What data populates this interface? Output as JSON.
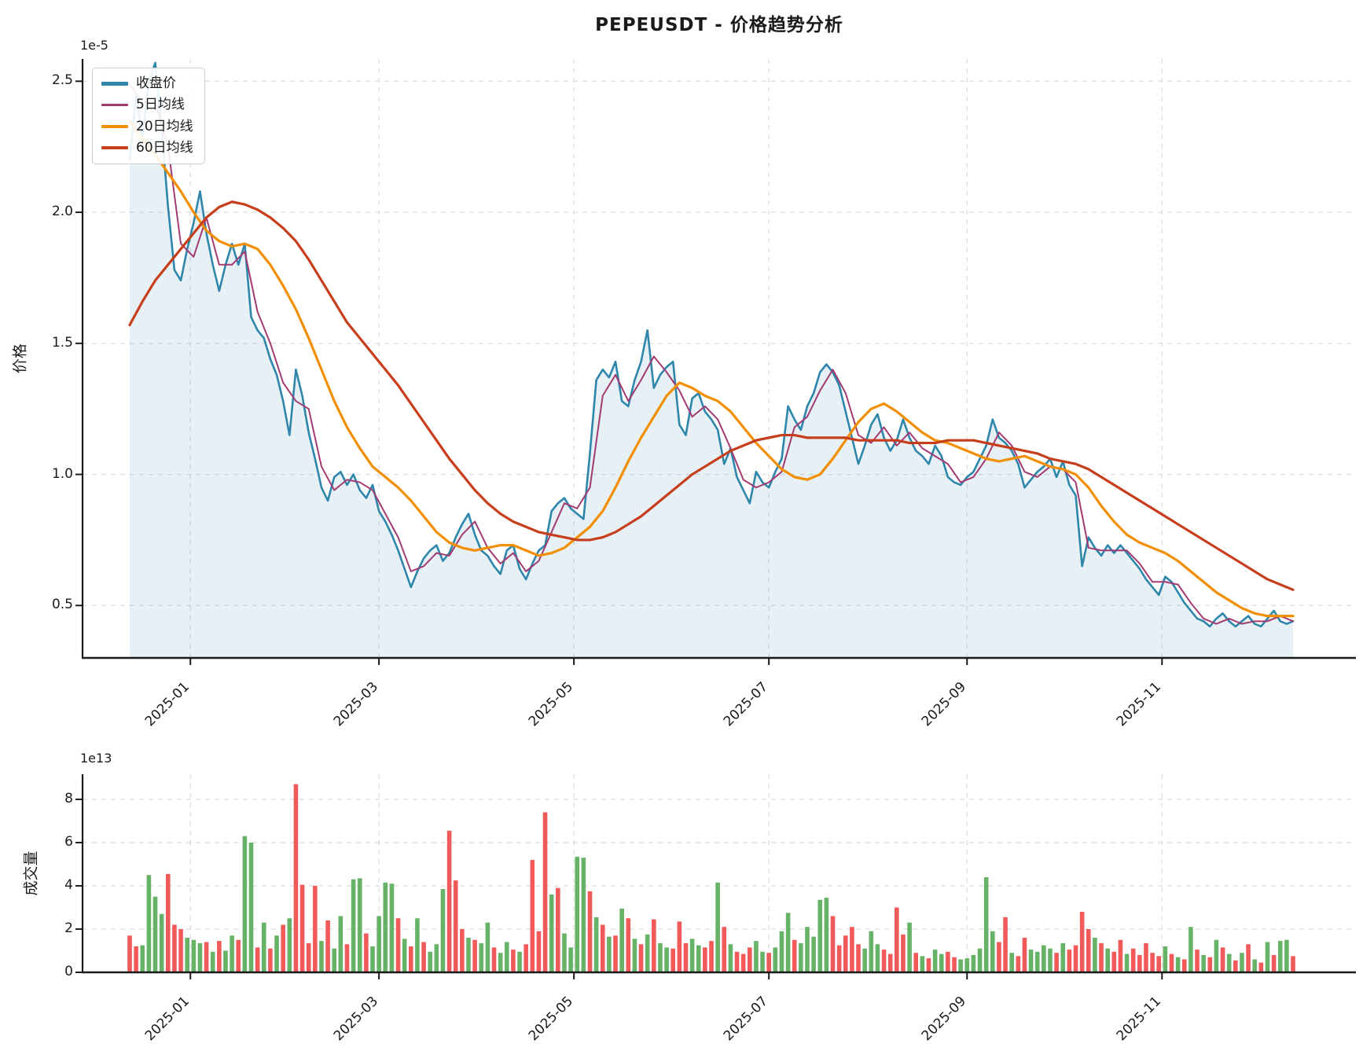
{
  "title": "PEPEUSDT - 价格趋势分析",
  "chart_data": [
    {
      "type": "line",
      "title": "PEPEUSDT - 价格趋势分析",
      "xlabel": "",
      "ylabel": "价格",
      "y_offset_label": "1e-5",
      "x_tick_labels": [
        "2025-01",
        "2025-03",
        "2025-05",
        "2025-07",
        "2025-09",
        "2025-11"
      ],
      "x_tick_days": [
        19,
        78,
        139,
        200,
        262,
        323
      ],
      "x_domain_days": [
        0,
        364
      ],
      "y_ticks": [
        0.5,
        1.0,
        1.5,
        2.0,
        2.5
      ],
      "y_tick_labels": [
        "0.5",
        "1.0",
        "1.5",
        "2.0",
        "2.5"
      ],
      "ylim": [
        0.3,
        2.585
      ],
      "grid": true,
      "legend_position": "upper left",
      "series": [
        {
          "name": "收盘价",
          "color": "#2E86AB",
          "line_width": 2.6,
          "fill_under": true,
          "fill_color": "rgba(46,134,171,0.12)",
          "day_step": 2,
          "values": [
            2.2,
            2.45,
            2.28,
            2.5,
            2.57,
            2.32,
            2.02,
            1.78,
            1.74,
            1.86,
            1.96,
            2.08,
            1.92,
            1.8,
            1.7,
            1.8,
            1.88,
            1.8,
            1.88,
            1.6,
            1.55,
            1.52,
            1.44,
            1.38,
            1.28,
            1.15,
            1.4,
            1.3,
            1.16,
            1.06,
            0.95,
            0.9,
            0.99,
            1.01,
            0.96,
            1.0,
            0.94,
            0.91,
            0.96,
            0.86,
            0.82,
            0.77,
            0.71,
            0.64,
            0.57,
            0.63,
            0.68,
            0.71,
            0.73,
            0.67,
            0.7,
            0.76,
            0.81,
            0.85,
            0.77,
            0.71,
            0.69,
            0.65,
            0.62,
            0.71,
            0.73,
            0.64,
            0.6,
            0.66,
            0.71,
            0.73,
            0.86,
            0.89,
            0.91,
            0.87,
            0.85,
            0.83,
            1.08,
            1.36,
            1.4,
            1.37,
            1.43,
            1.28,
            1.26,
            1.36,
            1.43,
            1.55,
            1.33,
            1.38,
            1.41,
            1.43,
            1.19,
            1.15,
            1.29,
            1.31,
            1.24,
            1.21,
            1.17,
            1.04,
            1.1,
            0.99,
            0.94,
            0.89,
            1.01,
            0.97,
            0.95,
            1.01,
            1.06,
            1.26,
            1.21,
            1.17,
            1.26,
            1.31,
            1.39,
            1.42,
            1.39,
            1.34,
            1.24,
            1.14,
            1.04,
            1.11,
            1.19,
            1.23,
            1.14,
            1.09,
            1.13,
            1.21,
            1.14,
            1.09,
            1.07,
            1.04,
            1.11,
            1.07,
            0.99,
            0.97,
            0.96,
            0.99,
            1.01,
            1.06,
            1.11,
            1.21,
            1.14,
            1.12,
            1.09,
            1.04,
            0.95,
            0.98,
            1.01,
            1.03,
            1.06,
            0.99,
            1.05,
            0.96,
            0.92,
            0.65,
            0.76,
            0.72,
            0.69,
            0.73,
            0.7,
            0.73,
            0.7,
            0.67,
            0.64,
            0.6,
            0.57,
            0.54,
            0.61,
            0.59,
            0.55,
            0.51,
            0.48,
            0.45,
            0.44,
            0.42,
            0.45,
            0.47,
            0.44,
            0.42,
            0.44,
            0.46,
            0.43,
            0.42,
            0.45,
            0.48,
            0.44,
            0.43,
            0.44
          ]
        },
        {
          "name": "5日均线",
          "color": "#A23B72",
          "line_width": 2.0,
          "day_step": 4,
          "values": [
            2.49,
            2.42,
            2.42,
            2.25,
            1.88,
            1.83,
            1.98,
            1.8,
            1.8,
            1.85,
            1.62,
            1.5,
            1.35,
            1.28,
            1.25,
            1.03,
            0.94,
            0.98,
            0.97,
            0.94,
            0.85,
            0.76,
            0.63,
            0.65,
            0.7,
            0.69,
            0.77,
            0.82,
            0.72,
            0.66,
            0.7,
            0.63,
            0.67,
            0.78,
            0.89,
            0.87,
            0.95,
            1.3,
            1.38,
            1.28,
            1.36,
            1.45,
            1.39,
            1.32,
            1.22,
            1.26,
            1.21,
            1.1,
            0.98,
            0.95,
            0.97,
            1.01,
            1.18,
            1.22,
            1.32,
            1.4,
            1.31,
            1.15,
            1.12,
            1.18,
            1.11,
            1.16,
            1.1,
            1.07,
            1.04,
            0.97,
            0.99,
            1.06,
            1.16,
            1.11,
            1.01,
            0.99,
            1.03,
            1.02,
            0.97,
            0.72,
            0.71,
            0.71,
            0.71,
            0.66,
            0.59,
            0.59,
            0.58,
            0.51,
            0.45,
            0.43,
            0.45,
            0.43,
            0.44,
            0.44,
            0.46,
            0.44
          ]
        },
        {
          "name": "20日均线",
          "color": "#F18F01",
          "line_width": 3.2,
          "day_step": 4,
          "values": [
            2.35,
            2.28,
            2.22,
            2.15,
            2.08,
            2.0,
            1.93,
            1.89,
            1.87,
            1.88,
            1.86,
            1.8,
            1.72,
            1.63,
            1.52,
            1.4,
            1.28,
            1.18,
            1.1,
            1.03,
            0.99,
            0.95,
            0.9,
            0.84,
            0.78,
            0.74,
            0.72,
            0.71,
            0.72,
            0.73,
            0.73,
            0.71,
            0.69,
            0.7,
            0.72,
            0.76,
            0.8,
            0.86,
            0.95,
            1.05,
            1.14,
            1.22,
            1.3,
            1.35,
            1.33,
            1.3,
            1.28,
            1.24,
            1.18,
            1.12,
            1.07,
            1.02,
            0.99,
            0.98,
            1.0,
            1.06,
            1.13,
            1.2,
            1.25,
            1.27,
            1.24,
            1.2,
            1.16,
            1.13,
            1.12,
            1.1,
            1.08,
            1.06,
            1.05,
            1.06,
            1.07,
            1.05,
            1.03,
            1.02,
            1.0,
            0.95,
            0.88,
            0.82,
            0.77,
            0.74,
            0.72,
            0.7,
            0.67,
            0.63,
            0.59,
            0.55,
            0.52,
            0.49,
            0.47,
            0.46,
            0.46,
            0.46
          ]
        },
        {
          "name": "60日均线",
          "color": "#C73E1D",
          "line_width": 3.2,
          "day_step": 4,
          "values": [
            1.57,
            1.66,
            1.74,
            1.8,
            1.86,
            1.92,
            1.98,
            2.02,
            2.04,
            2.03,
            2.01,
            1.98,
            1.94,
            1.89,
            1.82,
            1.74,
            1.66,
            1.58,
            1.52,
            1.46,
            1.4,
            1.34,
            1.27,
            1.2,
            1.13,
            1.06,
            1.0,
            0.94,
            0.89,
            0.85,
            0.82,
            0.8,
            0.78,
            0.77,
            0.76,
            0.75,
            0.75,
            0.76,
            0.78,
            0.81,
            0.84,
            0.88,
            0.92,
            0.96,
            1.0,
            1.03,
            1.06,
            1.09,
            1.11,
            1.13,
            1.14,
            1.15,
            1.15,
            1.14,
            1.14,
            1.14,
            1.14,
            1.13,
            1.13,
            1.13,
            1.13,
            1.12,
            1.12,
            1.12,
            1.13,
            1.13,
            1.13,
            1.12,
            1.11,
            1.1,
            1.09,
            1.08,
            1.06,
            1.05,
            1.04,
            1.02,
            0.99,
            0.96,
            0.93,
            0.9,
            0.87,
            0.84,
            0.81,
            0.78,
            0.75,
            0.72,
            0.69,
            0.66,
            0.63,
            0.6,
            0.58,
            0.56
          ]
        }
      ]
    },
    {
      "type": "bar",
      "ylabel": "成交量",
      "y_offset_label": "1e13",
      "x_tick_labels": [
        "2025-01",
        "2025-03",
        "2025-05",
        "2025-07",
        "2025-09",
        "2025-11"
      ],
      "x_tick_days": [
        19,
        78,
        139,
        200,
        262,
        323
      ],
      "x_domain_days": [
        0,
        364
      ],
      "y_ticks": [
        0,
        2,
        4,
        6,
        8
      ],
      "y_tick_labels": [
        "0",
        "2",
        "4",
        "6",
        "8"
      ],
      "ylim": [
        0,
        9.16
      ],
      "grid": true,
      "up_color": "#66B266",
      "down_color": "#F25A5A",
      "sign_convention": "positive=up-day(green bar), negative=down-day(red bar), magnitude in 1e13 units",
      "day_step": 2,
      "values_signed": [
        -1.7,
        -1.2,
        1.25,
        4.5,
        3.5,
        2.7,
        -4.55,
        -2.2,
        -2.0,
        1.6,
        1.5,
        1.35,
        -1.4,
        0.95,
        -1.45,
        1.0,
        1.7,
        -1.5,
        6.3,
        6.0,
        -1.15,
        2.3,
        -1.1,
        1.7,
        -2.2,
        2.5,
        -8.7,
        -4.05,
        -1.35,
        -4.0,
        1.45,
        -2.4,
        1.1,
        2.6,
        -1.3,
        4.3,
        4.35,
        -1.8,
        1.2,
        2.6,
        4.15,
        4.1,
        -2.5,
        1.55,
        -1.2,
        2.5,
        -1.4,
        0.95,
        1.3,
        3.85,
        -6.55,
        -4.25,
        -2.0,
        1.6,
        -1.5,
        1.35,
        2.3,
        -1.15,
        0.9,
        1.4,
        -1.05,
        0.95,
        -1.3,
        -5.2,
        -1.9,
        -7.4,
        3.6,
        -3.9,
        1.8,
        1.15,
        5.35,
        5.3,
        -3.75,
        2.55,
        -2.2,
        1.65,
        -1.7,
        2.95,
        -2.5,
        1.55,
        -1.3,
        1.75,
        -2.45,
        1.35,
        1.15,
        -1.1,
        -2.35,
        -1.35,
        1.55,
        1.25,
        -1.15,
        -1.45,
        4.15,
        -2.1,
        1.3,
        -0.95,
        -0.85,
        -1.15,
        1.45,
        0.95,
        -0.9,
        1.15,
        1.9,
        2.75,
        -1.5,
        1.35,
        2.1,
        1.65,
        3.35,
        3.45,
        -2.6,
        -1.25,
        -1.7,
        -2.1,
        -1.3,
        1.1,
        1.9,
        1.3,
        -1.05,
        -0.85,
        -3.0,
        -1.75,
        2.3,
        -0.9,
        0.75,
        -0.65,
        1.05,
        0.85,
        -0.95,
        -0.7,
        0.6,
        0.65,
        0.8,
        1.1,
        4.4,
        1.9,
        -1.4,
        -2.55,
        0.9,
        -0.75,
        -1.6,
        1.05,
        0.95,
        1.25,
        1.1,
        -0.9,
        1.35,
        -1.05,
        -1.25,
        -2.8,
        -2.0,
        1.6,
        -1.35,
        1.1,
        -0.95,
        -1.5,
        0.85,
        -1.1,
        -0.8,
        -1.35,
        -0.9,
        -0.75,
        1.2,
        -0.85,
        0.7,
        -0.6,
        2.1,
        -1.05,
        0.8,
        -0.7,
        1.5,
        -1.15,
        0.85,
        -0.55,
        0.9,
        -1.3,
        0.6,
        -0.45,
        1.4,
        -0.8,
        1.45,
        1.5,
        -0.75
      ]
    }
  ]
}
